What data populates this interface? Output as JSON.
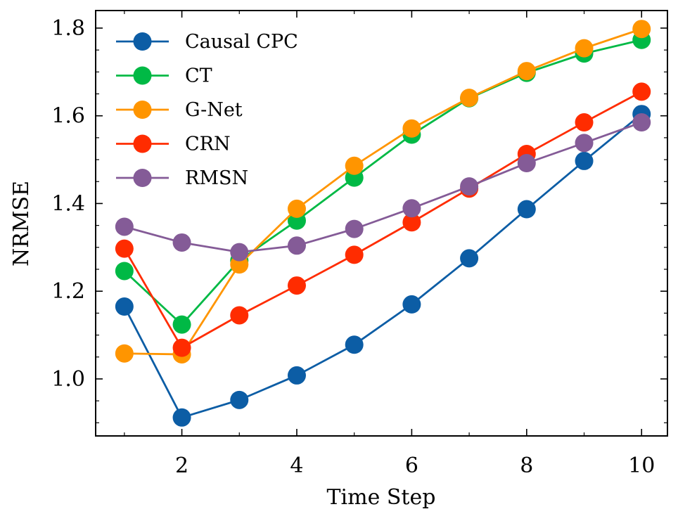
{
  "chart_data": {
    "type": "line",
    "title": "",
    "xlabel": "Time Step",
    "ylabel": "NRMSE",
    "xlim": [
      0.5,
      10.45
    ],
    "ylim": [
      0.87,
      1.84
    ],
    "xticks": [
      2,
      4,
      6,
      8,
      10
    ],
    "xtick_labels": [
      "2",
      "4",
      "6",
      "8",
      "10"
    ],
    "yticks": [
      1.0,
      1.2,
      1.4,
      1.6,
      1.8
    ],
    "ytick_labels": [
      "1.0",
      "1.2",
      "1.4",
      "1.6",
      "1.8"
    ],
    "grid": false,
    "legend_position": "top-left",
    "x": [
      1,
      2,
      3,
      4,
      5,
      6,
      7,
      8,
      9,
      10
    ],
    "series": [
      {
        "name": "Causal CPC",
        "color": "#0C5DA5",
        "values": [
          1.165,
          0.912,
          0.952,
          1.008,
          1.078,
          1.17,
          1.275,
          1.387,
          1.497,
          1.604
        ]
      },
      {
        "name": "CT",
        "color": "#00B945",
        "values": [
          1.246,
          1.124,
          1.27,
          1.361,
          1.459,
          1.557,
          1.64,
          1.698,
          1.742,
          1.773
        ]
      },
      {
        "name": "G-Net",
        "color": "#FF9500",
        "values": [
          1.058,
          1.056,
          1.261,
          1.388,
          1.486,
          1.571,
          1.641,
          1.702,
          1.754,
          1.798
        ]
      },
      {
        "name": "CRN",
        "color": "#FF2C00",
        "values": [
          1.297,
          1.071,
          1.145,
          1.213,
          1.283,
          1.357,
          1.434,
          1.513,
          1.585,
          1.655
        ]
      },
      {
        "name": "RMSN",
        "color": "#845B97",
        "values": [
          1.347,
          1.311,
          1.289,
          1.304,
          1.342,
          1.389,
          1.439,
          1.492,
          1.538,
          1.585
        ]
      }
    ]
  }
}
